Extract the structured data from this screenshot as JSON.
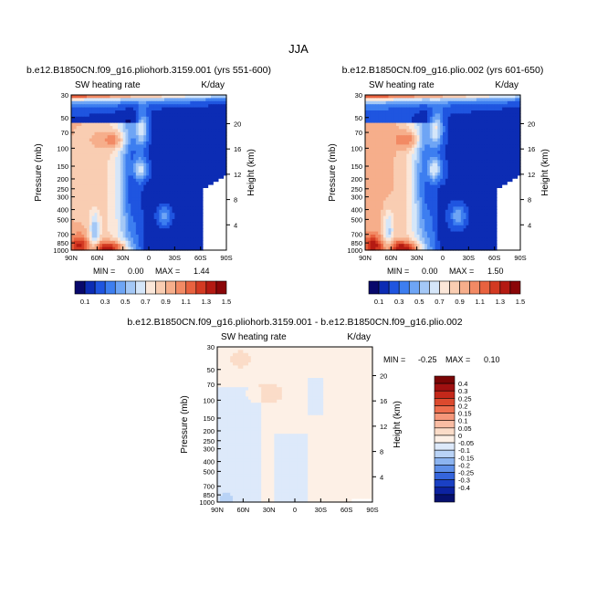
{
  "page_title": "JJA",
  "chart_data": [
    {
      "type": "heatmap",
      "title": "b.e12.B1850CN.f09_g16.pliohorb.3159.001 (yrs 551-600)",
      "subtitle_left": "SW heating rate",
      "subtitle_right": "K/day",
      "ylabel": "Pressure (mb)",
      "ylabel_right": "Height (km)",
      "x_ticks": [
        "90N",
        "60N",
        "30N",
        "0",
        "30S",
        "60S",
        "90S"
      ],
      "y_ticks": [
        "30",
        "50",
        "70",
        "100",
        "150",
        "200",
        "250",
        "300",
        "400",
        "500",
        "700",
        "850",
        "1000"
      ],
      "y_ticks_right": [
        "20",
        "16",
        "12",
        "8",
        "4"
      ],
      "stats": {
        "min_label": "MIN =",
        "min": "0.00",
        "max_label": "MAX =",
        "max": "1.44"
      }
    },
    {
      "type": "heatmap",
      "title": "b.e12.B1850CN.f09_g16.plio.002 (yrs 601-650)",
      "subtitle_left": "SW heating rate",
      "subtitle_right": "K/day",
      "ylabel": "Pressure (mb)",
      "ylabel_right": "Height (km)",
      "x_ticks": [
        "90N",
        "60N",
        "30N",
        "0",
        "30S",
        "60S",
        "90S"
      ],
      "y_ticks": [
        "30",
        "50",
        "70",
        "100",
        "150",
        "200",
        "250",
        "300",
        "400",
        "500",
        "700",
        "850",
        "1000"
      ],
      "y_ticks_right": [
        "20",
        "16",
        "12",
        "8",
        "4"
      ],
      "stats": {
        "min_label": "MIN =",
        "min": "0.00",
        "max_label": "MAX =",
        "max": "1.50"
      }
    },
    {
      "type": "heatmap",
      "title": "b.e12.B1850CN.f09_g16.pliohorb.3159.001 - b.e12.B1850CN.f09_g16.plio.002",
      "subtitle_left": "SW heating rate",
      "subtitle_right": "K/day",
      "ylabel": "Pressure (mb)",
      "ylabel_right": "Height (km)",
      "x_ticks": [
        "90N",
        "60N",
        "30N",
        "0",
        "30S",
        "60S",
        "90S"
      ],
      "y_ticks": [
        "30",
        "50",
        "70",
        "100",
        "150",
        "200",
        "250",
        "300",
        "400",
        "500",
        "700",
        "850",
        "1000"
      ],
      "y_ticks_right": [
        "20",
        "16",
        "12",
        "8",
        "4"
      ],
      "stats": {
        "min_label": "MIN =",
        "min": "-0.25",
        "max_label": "MAX =",
        "max": "0.10"
      }
    }
  ],
  "colorbars": {
    "field": {
      "labels": [
        "0.1",
        "0.3",
        "0.5",
        "0.7",
        "0.9",
        "1.1",
        "1.3",
        "1.5"
      ],
      "colors": [
        "#08086b",
        "#0c2cb4",
        "#1f55e0",
        "#3d7ef0",
        "#6ea5f5",
        "#a4c8f6",
        "#d5e6f9",
        "#fbe7d9",
        "#f9cdb2",
        "#f6ae8b",
        "#f28a64",
        "#e8623f",
        "#d33a22",
        "#b41a12",
        "#8a0608"
      ]
    },
    "difference": {
      "labels": [
        "0.4",
        "0.3",
        "0.25",
        "0.2",
        "0.15",
        "0.1",
        "0.05",
        "0",
        "-0.05",
        "-0.1",
        "-0.15",
        "-0.2",
        "-0.25",
        "-0.3",
        "-0.4"
      ],
      "colors": [
        "#7a0505",
        "#a01010",
        "#c4281a",
        "#dc4a2e",
        "#ee6f4f",
        "#f5977a",
        "#f9bca3",
        "#fbdcc8",
        "#fdf0e6",
        "#dde9fa",
        "#b9d3f6",
        "#8cb4f0",
        "#5e8fe8",
        "#3565dc",
        "#1a40c4",
        "#0c22a0",
        "#06106e"
      ]
    }
  }
}
